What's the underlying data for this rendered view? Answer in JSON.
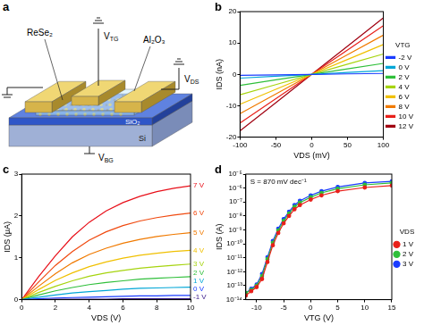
{
  "diagram": {
    "panel": "a",
    "labels": {
      "channel": "ReSe₂",
      "top_gate": "VTG",
      "dielectric": "Al₂O₃",
      "drain_source": "VDS",
      "back_gate": "VBG",
      "oxide": "SiO₂",
      "substrate": "Si"
    }
  },
  "chart_data": [
    {
      "panel": "b",
      "type": "line",
      "x_label": "VDS (mV)",
      "y_label": "IDS (nA)",
      "x": [
        -100,
        -50,
        0,
        50,
        100
      ],
      "xlim": [
        -100,
        100
      ],
      "xticks": [
        -100,
        -50,
        0,
        50,
        100
      ],
      "ylim": [
        -20,
        20
      ],
      "yticks": [
        -20,
        -10,
        0,
        10,
        20
      ],
      "grid": false,
      "legend": "right",
      "legend_title": "VTG",
      "series": [
        {
          "name": "-2 V",
          "color": "#1a3cff",
          "values": [
            -0.3,
            -0.15,
            0,
            0.15,
            0.3
          ]
        },
        {
          "name": "0 V",
          "color": "#00a6d6",
          "values": [
            -1.2,
            -0.6,
            0,
            0.6,
            1.2
          ]
        },
        {
          "name": "2 V",
          "color": "#2fbf3a",
          "values": [
            -3.5,
            -1.75,
            0,
            1.75,
            3.5
          ]
        },
        {
          "name": "4 V",
          "color": "#a6d40f",
          "values": [
            -6.5,
            -3.25,
            0,
            3.25,
            6.5
          ]
        },
        {
          "name": "6 V",
          "color": "#f0c000",
          "values": [
            -9.5,
            -4.75,
            0,
            4.75,
            9.5
          ]
        },
        {
          "name": "8 V",
          "color": "#f07a00",
          "values": [
            -12.5,
            -6.25,
            0,
            6.25,
            12.5
          ]
        },
        {
          "name": "10 V",
          "color": "#e8201a",
          "values": [
            -15.5,
            -7.75,
            0,
            7.75,
            15.5
          ]
        },
        {
          "name": "12 V",
          "color": "#a00010",
          "values": [
            -18,
            -9,
            0,
            9,
            18
          ]
        }
      ]
    },
    {
      "panel": "c",
      "type": "line",
      "x_label": "VDS (V)",
      "y_label": "IDS (μA)",
      "x": [
        0,
        1,
        2,
        3,
        4,
        5,
        6,
        7,
        8,
        9,
        10
      ],
      "xlim": [
        0,
        10
      ],
      "xticks": [
        0,
        2,
        4,
        6,
        8,
        10
      ],
      "ylim": [
        0,
        3
      ],
      "yticks": [
        0,
        1,
        2,
        3
      ],
      "grid": false,
      "series": [
        {
          "name": "-1 V",
          "color": "#3a1a8a",
          "values": [
            0,
            0,
            0.01,
            0.01,
            0.01,
            0.01,
            0.02,
            0.02,
            0.02,
            0.02,
            0.02
          ]
        },
        {
          "name": "0 V",
          "color": "#1a3cff",
          "values": [
            0,
            0.02,
            0.04,
            0.05,
            0.06,
            0.07,
            0.08,
            0.09,
            0.09,
            0.1,
            0.1
          ]
        },
        {
          "name": "1 V",
          "color": "#00a6d6",
          "values": [
            0,
            0.06,
            0.11,
            0.16,
            0.19,
            0.22,
            0.25,
            0.27,
            0.28,
            0.29,
            0.3
          ]
        },
        {
          "name": "2 V",
          "color": "#2fbf3a",
          "values": [
            0,
            0.11,
            0.21,
            0.29,
            0.36,
            0.41,
            0.45,
            0.49,
            0.51,
            0.53,
            0.55
          ]
        },
        {
          "name": "3 V",
          "color": "#a6d40f",
          "values": [
            0,
            0.17,
            0.32,
            0.45,
            0.56,
            0.64,
            0.7,
            0.75,
            0.79,
            0.82,
            0.85
          ]
        },
        {
          "name": "4 V",
          "color": "#f0c000",
          "values": [
            0,
            0.24,
            0.46,
            0.64,
            0.79,
            0.9,
            0.99,
            1.06,
            1.11,
            1.15,
            1.18
          ]
        },
        {
          "name": "5 V",
          "color": "#f07a00",
          "values": [
            0,
            0.32,
            0.62,
            0.88,
            1.08,
            1.23,
            1.35,
            1.44,
            1.51,
            1.56,
            1.6
          ]
        },
        {
          "name": "6 V",
          "color": "#f04a10",
          "values": [
            0,
            0.42,
            0.82,
            1.15,
            1.42,
            1.62,
            1.77,
            1.88,
            1.96,
            2.02,
            2.07
          ]
        },
        {
          "name": "7 V",
          "color": "#e8101a",
          "values": [
            0,
            0.55,
            1.05,
            1.5,
            1.85,
            2.12,
            2.32,
            2.47,
            2.58,
            2.66,
            2.72
          ]
        }
      ]
    },
    {
      "panel": "d",
      "type": "line",
      "x_label": "VTG (V)",
      "y_label": "IDS (A)",
      "log": "y",
      "annotation": "S = 870 mV dec⁻¹",
      "marker": "circle",
      "x": [
        -12,
        -11,
        -10,
        -9,
        -8,
        -7,
        -6,
        -5,
        -4,
        -3,
        -2,
        0,
        2,
        5,
        10,
        15
      ],
      "xlim": [
        -12,
        15
      ],
      "xticks": [
        -10,
        -5,
        0,
        5,
        10,
        15
      ],
      "ylim": [
        1e-14,
        1e-05
      ],
      "yticks": [
        {
          "value": 1e-14,
          "label": "10⁻¹⁴"
        },
        {
          "value": 1e-13,
          "label": "10⁻¹³"
        },
        {
          "value": 1e-12,
          "label": "10⁻¹²"
        },
        {
          "value": 1e-11,
          "label": "10⁻¹¹"
        },
        {
          "value": 1e-10,
          "label": "10⁻¹⁰"
        },
        {
          "value": 1e-09,
          "label": "10⁻⁹"
        },
        {
          "value": 1e-08,
          "label": "10⁻⁸"
        },
        {
          "value": 1e-07,
          "label": "10⁻⁷"
        },
        {
          "value": 1e-06,
          "label": "10⁻⁶"
        },
        {
          "value": 1e-05,
          "label": "10⁻⁵"
        }
      ],
      "grid": false,
      "legend": "right",
      "legend_title": "VDS",
      "series": [
        {
          "name": "1 V",
          "color": "#e8201a",
          "values": [
            2e-14,
            4e-14,
            8e-14,
            3e-13,
            5e-12,
            8e-11,
            6e-10,
            3e-09,
            1e-08,
            3e-08,
            6e-08,
            1.5e-07,
            3e-07,
            6e-07,
            1.1e-06,
            1.5e-06
          ]
        },
        {
          "name": "2 V",
          "color": "#2fbf3a",
          "values": [
            3e-14,
            5e-14,
            1e-13,
            5e-13,
            8e-12,
            1.2e-10,
            9e-10,
            4.5e-09,
            1.5e-08,
            4.5e-08,
            9e-08,
            2.2e-07,
            4.5e-07,
            9e-07,
            1.7e-06,
            2.3e-06
          ]
        },
        {
          "name": "3 V",
          "color": "#1a3cff",
          "values": [
            3e-14,
            6e-14,
            1.2e-13,
            7e-13,
            1.1e-11,
            1.6e-10,
            1.2e-09,
            6e-09,
            2e-08,
            6e-08,
            1.2e-07,
            3e-07,
            6e-07,
            1.2e-06,
            2.3e-06,
            3e-06
          ]
        }
      ]
    }
  ]
}
